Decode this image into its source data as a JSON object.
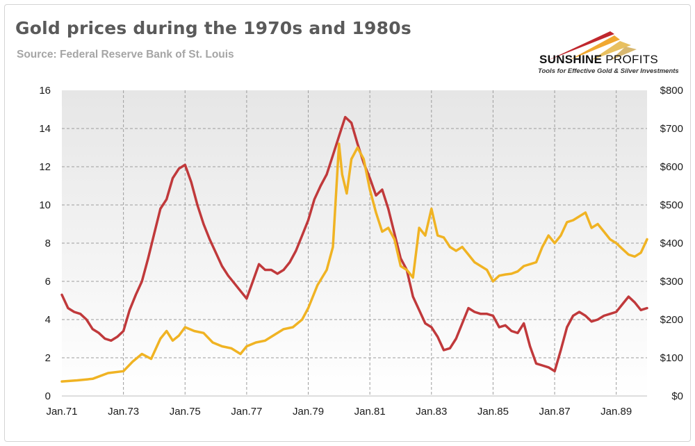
{
  "header": {
    "title": "Gold prices during the 1970s and 1980s",
    "subtitle": "Source: Federal Reserve Bank of St. Louis"
  },
  "logo": {
    "brand_part1": "SUNSHINE",
    "brand_part2": " PROFITS",
    "tagline": "Tools for Effective Gold & Silver Investments",
    "colors": [
      "#c0272d",
      "#f0a830",
      "#e8c060"
    ]
  },
  "chart_data": {
    "type": "line",
    "grid": true,
    "legend": "none",
    "x_ticks": [
      "Jan.71",
      "Jan.73",
      "Jan.75",
      "Jan.77",
      "Jan.79",
      "Jan.81",
      "Jan.83",
      "Jan.85",
      "Jan.87",
      "Jan.89"
    ],
    "y_left": {
      "ylim": [
        0,
        16
      ],
      "ticks": [
        "0",
        "2",
        "4",
        "6",
        "8",
        "10",
        "12",
        "14",
        "16"
      ]
    },
    "y_right": {
      "ylim": [
        0,
        800
      ],
      "ticks": [
        "$0",
        "$100",
        "$200",
        "$300",
        "$400",
        "$500",
        "$600",
        "$700",
        "$800"
      ]
    },
    "series": [
      {
        "axis": "left",
        "color": "#c0393b",
        "points": [
          [
            1971.0,
            5.3
          ],
          [
            1971.2,
            4.6
          ],
          [
            1971.4,
            4.4
          ],
          [
            1971.6,
            4.3
          ],
          [
            1971.8,
            4.0
          ],
          [
            1972.0,
            3.5
          ],
          [
            1972.2,
            3.3
          ],
          [
            1972.4,
            3.0
          ],
          [
            1972.6,
            2.9
          ],
          [
            1972.8,
            3.1
          ],
          [
            1973.0,
            3.4
          ],
          [
            1973.2,
            4.5
          ],
          [
            1973.4,
            5.3
          ],
          [
            1973.6,
            6.0
          ],
          [
            1973.8,
            7.2
          ],
          [
            1974.0,
            8.5
          ],
          [
            1974.2,
            9.8
          ],
          [
            1974.4,
            10.3
          ],
          [
            1974.6,
            11.4
          ],
          [
            1974.8,
            11.9
          ],
          [
            1975.0,
            12.1
          ],
          [
            1975.2,
            11.2
          ],
          [
            1975.4,
            10.0
          ],
          [
            1975.6,
            9.0
          ],
          [
            1975.8,
            8.2
          ],
          [
            1976.0,
            7.5
          ],
          [
            1976.2,
            6.8
          ],
          [
            1976.4,
            6.3
          ],
          [
            1976.6,
            5.9
          ],
          [
            1976.8,
            5.5
          ],
          [
            1977.0,
            5.1
          ],
          [
            1977.2,
            6.0
          ],
          [
            1977.4,
            6.9
          ],
          [
            1977.6,
            6.6
          ],
          [
            1977.8,
            6.6
          ],
          [
            1978.0,
            6.4
          ],
          [
            1978.2,
            6.6
          ],
          [
            1978.4,
            7.0
          ],
          [
            1978.6,
            7.6
          ],
          [
            1978.8,
            8.4
          ],
          [
            1979.0,
            9.2
          ],
          [
            1979.2,
            10.3
          ],
          [
            1979.4,
            11.0
          ],
          [
            1979.6,
            11.6
          ],
          [
            1979.8,
            12.6
          ],
          [
            1980.0,
            13.6
          ],
          [
            1980.2,
            14.6
          ],
          [
            1980.4,
            14.3
          ],
          [
            1980.6,
            13.2
          ],
          [
            1980.8,
            12.2
          ],
          [
            1981.0,
            11.4
          ],
          [
            1981.2,
            10.5
          ],
          [
            1981.4,
            10.8
          ],
          [
            1981.6,
            9.8
          ],
          [
            1981.8,
            8.5
          ],
          [
            1982.0,
            7.2
          ],
          [
            1982.2,
            6.6
          ],
          [
            1982.4,
            5.2
          ],
          [
            1982.6,
            4.5
          ],
          [
            1982.8,
            3.8
          ],
          [
            1983.0,
            3.6
          ],
          [
            1983.2,
            3.1
          ],
          [
            1983.4,
            2.4
          ],
          [
            1983.6,
            2.5
          ],
          [
            1983.8,
            3.0
          ],
          [
            1984.0,
            3.8
          ],
          [
            1984.2,
            4.6
          ],
          [
            1984.4,
            4.4
          ],
          [
            1984.6,
            4.3
          ],
          [
            1984.8,
            4.3
          ],
          [
            1985.0,
            4.2
          ],
          [
            1985.2,
            3.6
          ],
          [
            1985.4,
            3.7
          ],
          [
            1985.6,
            3.4
          ],
          [
            1985.8,
            3.3
          ],
          [
            1986.0,
            3.8
          ],
          [
            1986.2,
            2.6
          ],
          [
            1986.4,
            1.7
          ],
          [
            1986.6,
            1.6
          ],
          [
            1986.8,
            1.5
          ],
          [
            1987.0,
            1.3
          ],
          [
            1987.2,
            2.4
          ],
          [
            1987.4,
            3.6
          ],
          [
            1987.6,
            4.2
          ],
          [
            1987.8,
            4.4
          ],
          [
            1988.0,
            4.2
          ],
          [
            1988.2,
            3.9
          ],
          [
            1988.4,
            4.0
          ],
          [
            1988.6,
            4.2
          ],
          [
            1988.8,
            4.3
          ],
          [
            1989.0,
            4.4
          ],
          [
            1989.2,
            4.8
          ],
          [
            1989.4,
            5.2
          ],
          [
            1989.6,
            4.9
          ],
          [
            1989.8,
            4.5
          ],
          [
            1990.0,
            4.6
          ]
        ]
      },
      {
        "axis": "right",
        "color": "#f0b323",
        "points": [
          [
            1971.0,
            38
          ],
          [
            1971.5,
            41
          ],
          [
            1972.0,
            45
          ],
          [
            1972.5,
            60
          ],
          [
            1973.0,
            65
          ],
          [
            1973.3,
            90
          ],
          [
            1973.6,
            110
          ],
          [
            1973.9,
            97
          ],
          [
            1974.2,
            150
          ],
          [
            1974.4,
            170
          ],
          [
            1974.6,
            145
          ],
          [
            1974.8,
            158
          ],
          [
            1975.0,
            180
          ],
          [
            1975.3,
            170
          ],
          [
            1975.6,
            165
          ],
          [
            1975.9,
            140
          ],
          [
            1976.2,
            130
          ],
          [
            1976.5,
            125
          ],
          [
            1976.8,
            110
          ],
          [
            1977.0,
            130
          ],
          [
            1977.3,
            140
          ],
          [
            1977.6,
            145
          ],
          [
            1977.9,
            160
          ],
          [
            1978.2,
            175
          ],
          [
            1978.5,
            180
          ],
          [
            1978.8,
            200
          ],
          [
            1979.0,
            230
          ],
          [
            1979.3,
            290
          ],
          [
            1979.6,
            330
          ],
          [
            1979.8,
            390
          ],
          [
            1980.0,
            660
          ],
          [
            1980.1,
            580
          ],
          [
            1980.25,
            530
          ],
          [
            1980.4,
            620
          ],
          [
            1980.6,
            650
          ],
          [
            1980.8,
            620
          ],
          [
            1981.0,
            540
          ],
          [
            1981.2,
            480
          ],
          [
            1981.4,
            430
          ],
          [
            1981.6,
            440
          ],
          [
            1981.8,
            410
          ],
          [
            1982.0,
            340
          ],
          [
            1982.2,
            330
          ],
          [
            1982.4,
            310
          ],
          [
            1982.6,
            440
          ],
          [
            1982.8,
            420
          ],
          [
            1983.0,
            490
          ],
          [
            1983.2,
            420
          ],
          [
            1983.4,
            415
          ],
          [
            1983.6,
            390
          ],
          [
            1983.8,
            380
          ],
          [
            1984.0,
            390
          ],
          [
            1984.2,
            370
          ],
          [
            1984.4,
            350
          ],
          [
            1984.6,
            340
          ],
          [
            1984.8,
            330
          ],
          [
            1985.0,
            300
          ],
          [
            1985.2,
            315
          ],
          [
            1985.4,
            318
          ],
          [
            1985.6,
            320
          ],
          [
            1985.8,
            326
          ],
          [
            1986.0,
            340
          ],
          [
            1986.2,
            345
          ],
          [
            1986.4,
            350
          ],
          [
            1986.6,
            390
          ],
          [
            1986.8,
            420
          ],
          [
            1987.0,
            400
          ],
          [
            1987.2,
            420
          ],
          [
            1987.4,
            455
          ],
          [
            1987.6,
            460
          ],
          [
            1987.8,
            470
          ],
          [
            1988.0,
            480
          ],
          [
            1988.2,
            440
          ],
          [
            1988.4,
            450
          ],
          [
            1988.6,
            430
          ],
          [
            1988.8,
            410
          ],
          [
            1989.0,
            400
          ],
          [
            1989.2,
            385
          ],
          [
            1989.4,
            370
          ],
          [
            1989.6,
            365
          ],
          [
            1989.8,
            375
          ],
          [
            1990.0,
            410
          ]
        ]
      }
    ]
  }
}
